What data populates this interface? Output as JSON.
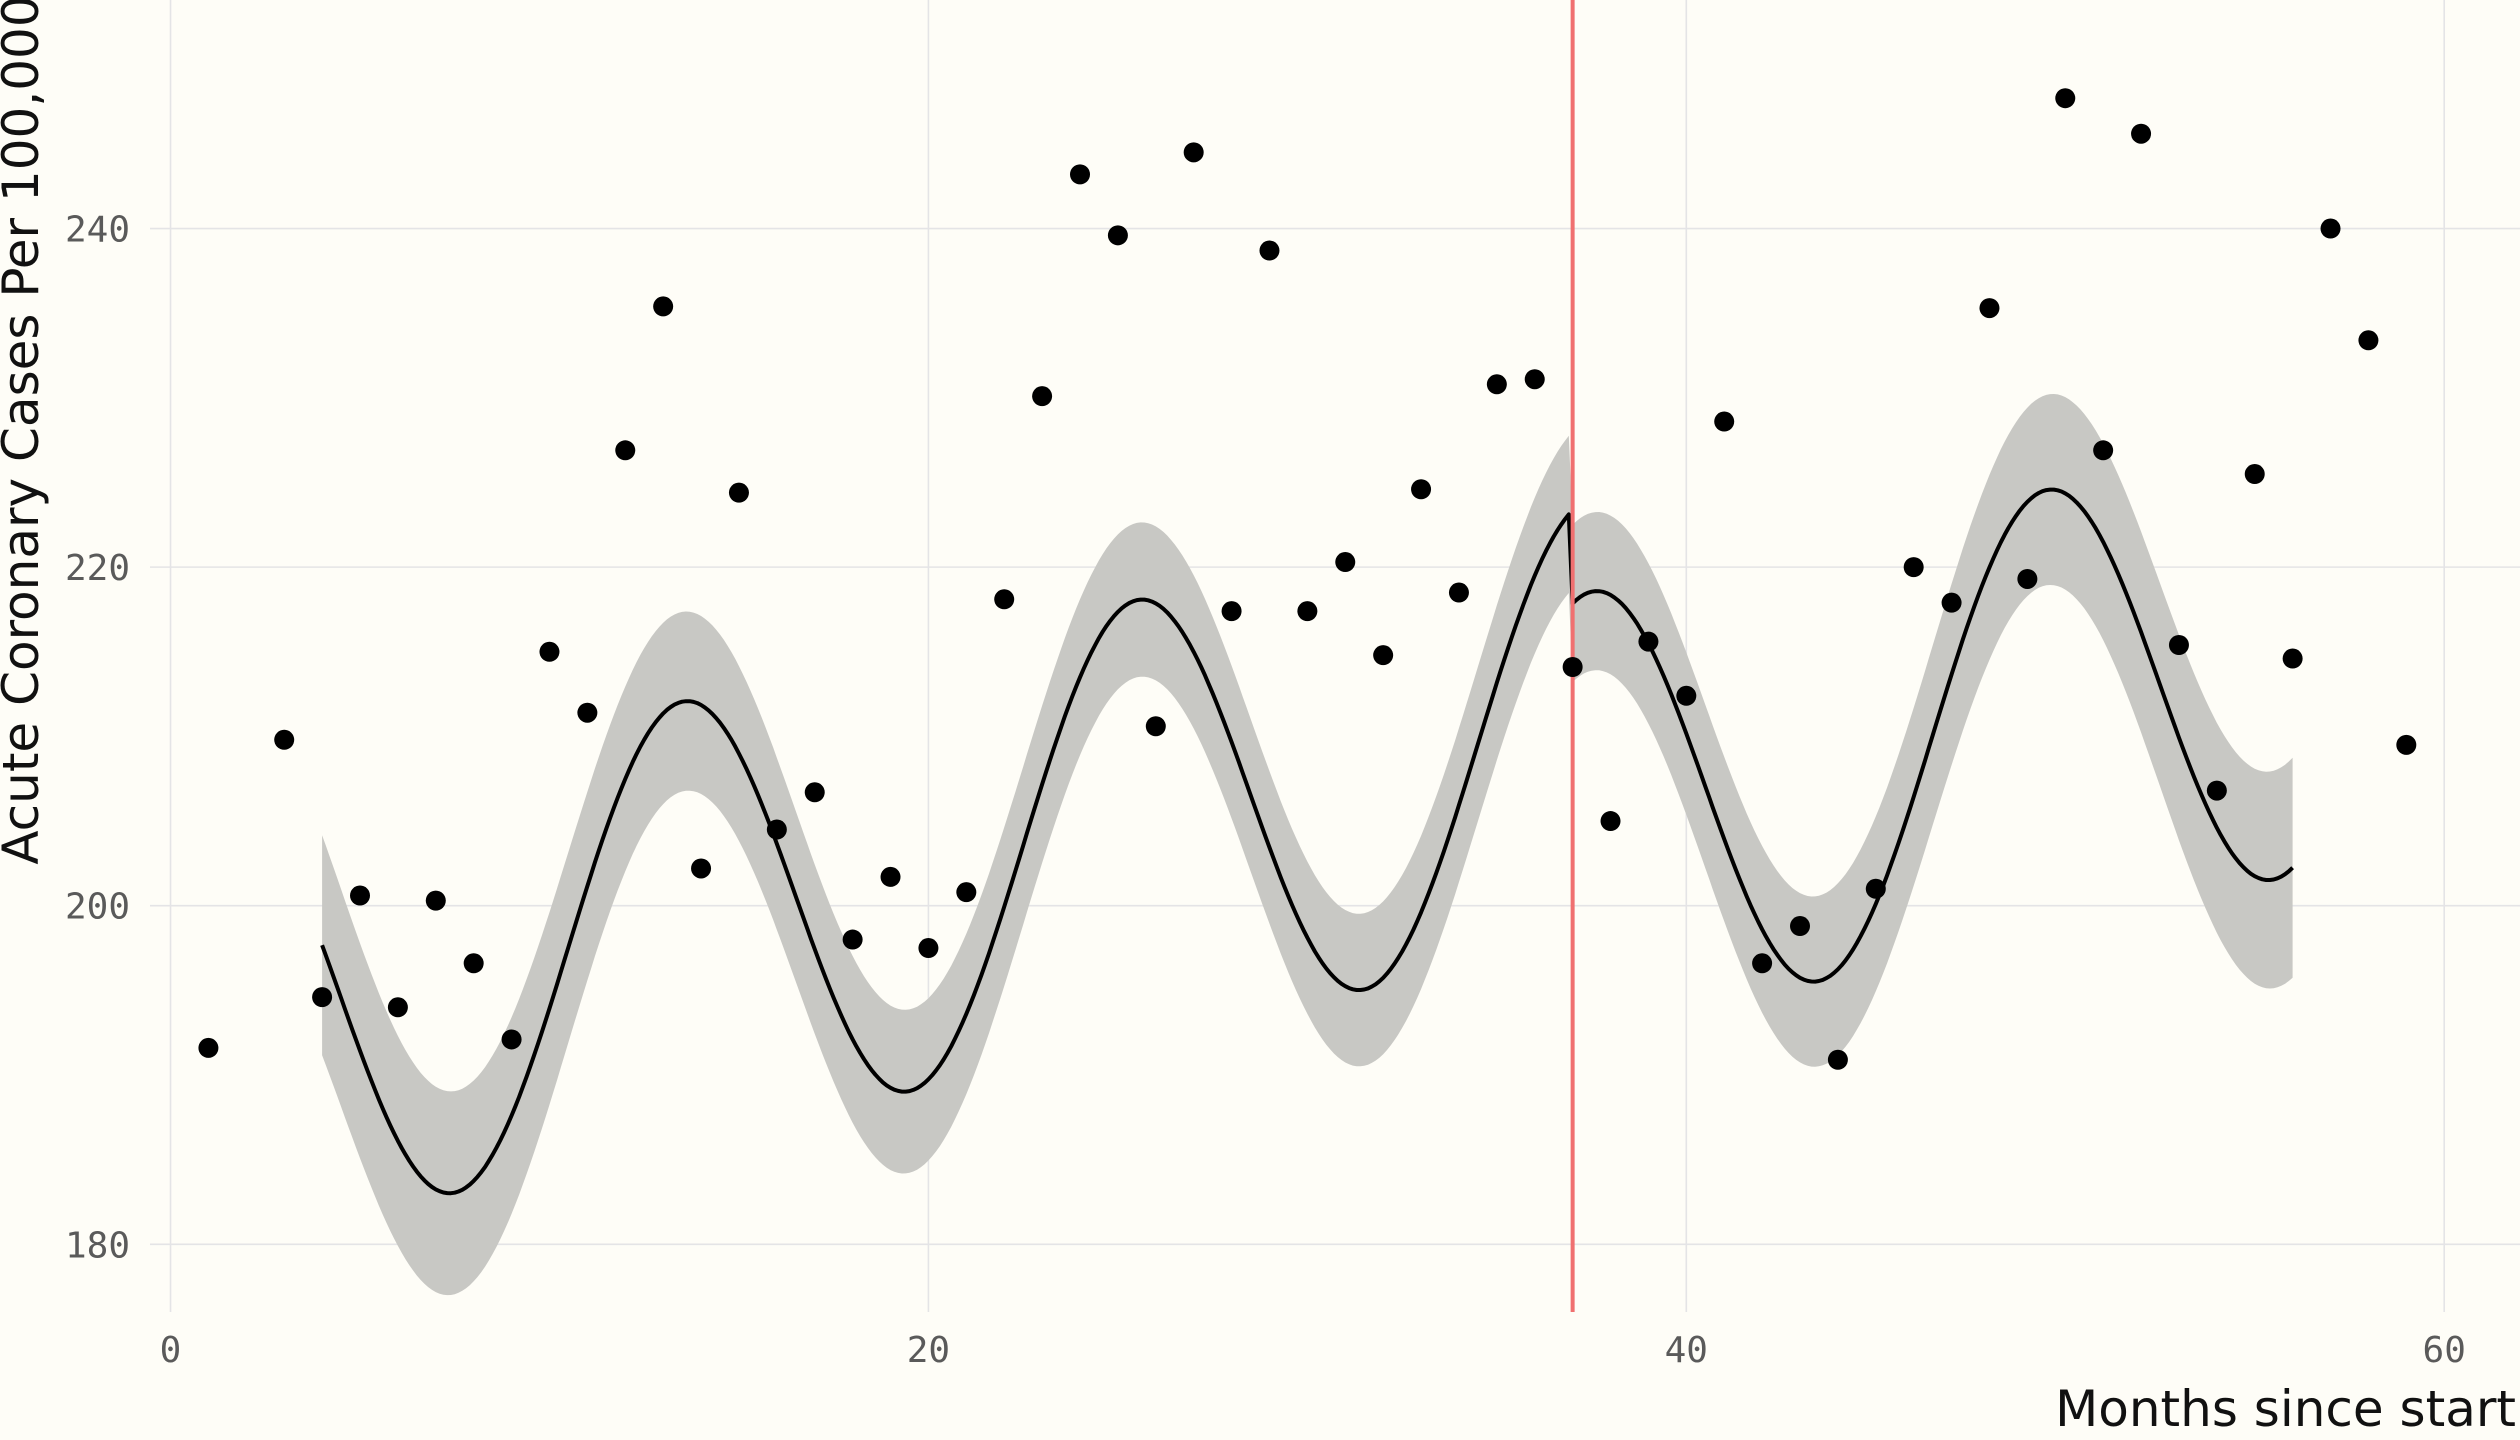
{
  "chart_data": {
    "type": "scatter",
    "title": "",
    "xlabel": "Months since start",
    "ylabel": "Acute Coronary Cases Per 100,000",
    "xlim": [
      -4.5,
      62
    ],
    "ylim": [
      176,
      253.5
    ],
    "x_ticks": [
      0,
      20,
      40,
      60
    ],
    "y_ticks": [
      180,
      200,
      220,
      240
    ],
    "x_tick_labels": [
      "0",
      "20",
      "40",
      "60"
    ],
    "y_tick_labels": [
      "180",
      "200",
      "220",
      "240"
    ],
    "grid": true,
    "legend": "none",
    "intervention_month": 37,
    "colors": {
      "background": "#fefdf7",
      "grid": "#e4e4e6",
      "points": "#000000",
      "fit_line": "#000000",
      "confidence_band": "#c8c8c4",
      "intervention_line": "#f07070"
    },
    "series": [
      {
        "type": "scatter",
        "x": [
          1,
          3,
          4,
          5,
          6,
          7,
          8,
          9,
          10,
          11,
          12,
          13,
          14,
          15,
          16,
          17,
          18,
          19,
          20,
          21,
          22,
          23,
          24,
          25,
          26,
          27,
          28,
          29,
          30,
          31,
          32,
          33,
          34,
          35,
          36,
          37,
          38,
          39,
          40,
          41,
          42,
          43,
          44,
          45,
          46,
          47,
          48,
          49,
          50,
          51,
          52,
          53,
          54,
          55,
          56,
          57,
          58,
          59
        ],
        "y": [
          191.6,
          209.8,
          194.6,
          200.6,
          194.0,
          200.3,
          196.6,
          192.1,
          215.0,
          211.4,
          226.9,
          235.4,
          202.2,
          224.4,
          204.5,
          206.7,
          198.0,
          201.7,
          197.5,
          200.8,
          218.1,
          230.1,
          243.2,
          239.6,
          210.6,
          244.5,
          217.4,
          238.7,
          217.4,
          220.3,
          214.8,
          224.6,
          218.5,
          230.8,
          231.1,
          214.1,
          205.0,
          215.6,
          212.4,
          228.6,
          196.6,
          198.8,
          190.9,
          201.0,
          220.0,
          217.9,
          235.3,
          219.3,
          247.7,
          226.9,
          245.6,
          215.4,
          206.8,
          225.5,
          214.6,
          240.0,
          233.4,
          209.5
        ]
      },
      {
        "type": "line",
        "x_start": 4,
        "x_end": 56,
        "fit": {
          "intercept": 192.3,
          "slope": 0.5,
          "seasonal_amplitude": 13,
          "period_months": 12,
          "peak_month": 13.5,
          "level_change_at_intervention": -5.5,
          "slope_change_after_intervention": 0
        },
        "band_halfwidth_min": 4.5,
        "band_halfwidth_edge": 6.5
      }
    ]
  }
}
